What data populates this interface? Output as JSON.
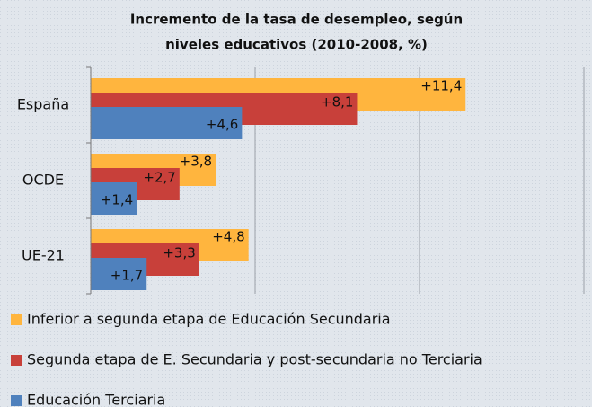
{
  "chart_data": {
    "type": "hbar",
    "title": "Incremento de la tasa de desempleo, según niveles educativos (2010-2008, %)",
    "categories": [
      "España",
      "OCDE",
      "UE-21"
    ],
    "series": [
      {
        "name": "Inferior a segunda etapa de Educación Secundaria",
        "color": "#FFB53E",
        "values": [
          11.4,
          3.8,
          4.8
        ],
        "value_labels": [
          "+11,4",
          "+3,8",
          "+4,8"
        ]
      },
      {
        "name": "Segunda etapa de E. Secundaria y post-secundaria no Terciaria",
        "color": "#C8403A",
        "values": [
          8.1,
          2.7,
          3.3
        ],
        "value_labels": [
          "+8,1",
          "+2,7",
          "+3,3"
        ]
      },
      {
        "name": "Educación Terciaria",
        "color": "#4F81BD",
        "values": [
          4.6,
          1.4,
          1.7
        ],
        "value_labels": [
          "+4,6",
          "+1,4",
          "+1,7"
        ]
      }
    ],
    "xlim": [
      0,
      15
    ],
    "xticks": [
      0,
      5,
      10,
      15
    ],
    "grid": true,
    "legend": "bottom"
  }
}
